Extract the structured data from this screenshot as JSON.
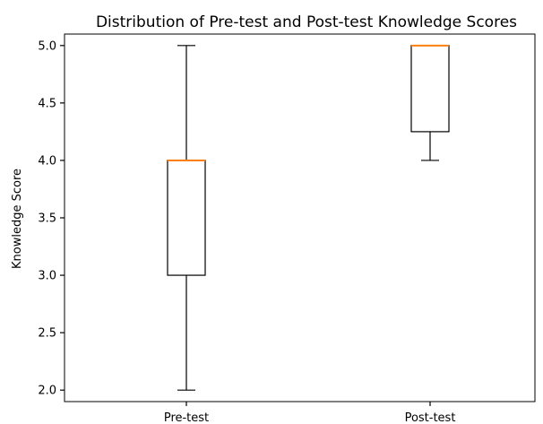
{
  "chart_data": {
    "type": "box",
    "title": "Distribution of Pre-test and Post-test Knowledge Scores",
    "xlabel": "",
    "ylabel": "Knowledge Score",
    "ylim": [
      1.9,
      5.1
    ],
    "yticks": [
      "2.0",
      "2.5",
      "3.0",
      "3.5",
      "4.0",
      "4.5",
      "5.0"
    ],
    "categories": [
      "Pre-test",
      "Post-test"
    ],
    "boxes": [
      {
        "category": "Pre-test",
        "min": 2.0,
        "q1": 3.0,
        "median": 4.0,
        "q3": 4.0,
        "max": 5.0
      },
      {
        "category": "Post-test",
        "min": 4.0,
        "q1": 4.25,
        "median": 5.0,
        "q3": 5.0,
        "max": 5.0
      }
    ],
    "median_color": "#ff7f0e",
    "grid": false
  }
}
